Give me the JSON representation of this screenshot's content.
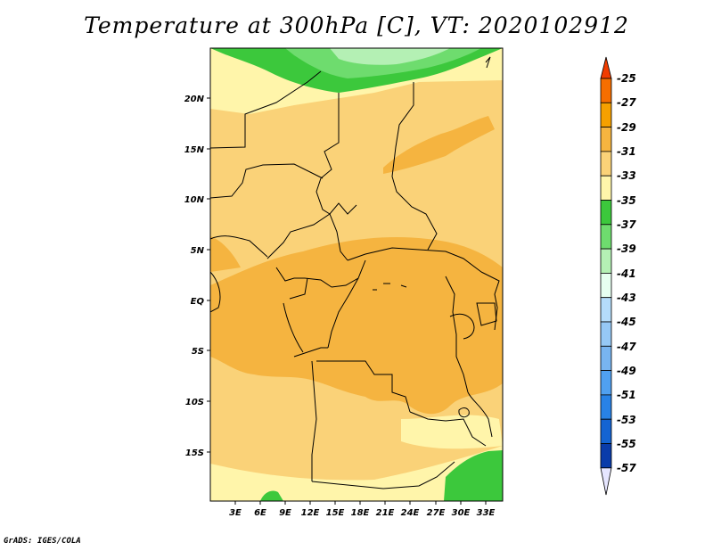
{
  "title": "Temperature at 300hPa [C], VT: 2020102912",
  "credit": "GrADS: IGES/COLA",
  "map": {
    "lat_labels": [
      "20N",
      "15N",
      "10N",
      "5N",
      "EQ",
      "5S",
      "10S",
      "15S"
    ],
    "lon_labels": [
      "3E",
      "6E",
      "9E",
      "12E",
      "15E",
      "18E",
      "21E",
      "24E",
      "27E",
      "30E",
      "33E"
    ]
  },
  "legend": {
    "unit": "C",
    "levels": [
      "-25",
      "-27",
      "-29",
      "-31",
      "-33",
      "-35",
      "-37",
      "-39",
      "-41",
      "-43",
      "-45",
      "-47",
      "-49",
      "-51",
      "-53",
      "-55",
      "-57"
    ],
    "colors": {
      "gt_-25": "#f03c00",
      "-27_-25": "#f56e00",
      "-29_-27": "#f5a000",
      "-31_-29": "#f5b440",
      "-33_-31": "#fad278",
      "-35_-33": "#fff5aa",
      "-37_-35": "#3cc83c",
      "-39_-37": "#6edc6e",
      "-41_-39": "#b4f0b4",
      "-43_-41": "#e6fff0",
      "-45_-43": "#b4dcfa",
      "-47_-45": "#96c8f5",
      "-49_-47": "#78b4f0",
      "-51_-49": "#50a0f0",
      "-53_-51": "#2882e6",
      "-55_-53": "#1464d2",
      "-57_-55": "#0a3caa",
      "lt_-57": "#e6e6ff"
    }
  }
}
